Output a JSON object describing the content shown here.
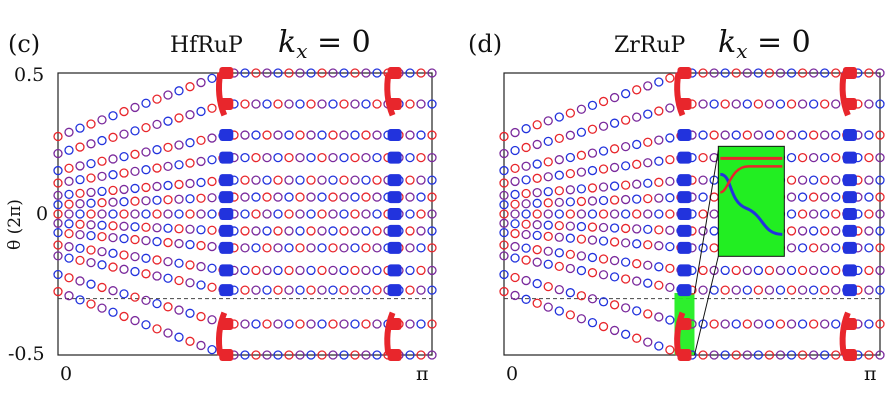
{
  "chart_data": [
    {
      "type": "scatter",
      "panel_label": "(c)",
      "title": "HfRuP",
      "subtitle": "k_x = 0",
      "subtitle_parts": {
        "symbol": "k",
        "subscript": "x",
        "rest": " = 0"
      },
      "ylabel": "θ (2π)",
      "xticks": [
        "0",
        "π"
      ],
      "yticks": [
        "0.5",
        "0",
        "-0.5"
      ],
      "xlim": [
        0,
        1
      ],
      "ylim": [
        -0.5,
        0.5
      ],
      "dashed_line_y": -0.3,
      "series_colors": [
        "#e8262c",
        "#2233dd",
        "#7a2a9c"
      ],
      "bands_y": [
        0.5,
        0.39,
        0.28,
        0.2,
        0.12,
        0.06,
        0.0,
        -0.06,
        -0.12,
        -0.2,
        -0.27,
        -0.39,
        -0.5
      ],
      "band_crossings_x": [
        0.45,
        0.9
      ],
      "inset": false
    },
    {
      "type": "scatter",
      "panel_label": "(d)",
      "title": "ZrRuP",
      "subtitle": "k_x = 0",
      "subtitle_parts": {
        "symbol": "k",
        "subscript": "x",
        "rest": " = 0"
      },
      "ylabel": "",
      "xticks": [
        "0",
        "π"
      ],
      "yticks": [],
      "xlim": [
        0,
        1
      ],
      "ylim": [
        -0.5,
        0.5
      ],
      "dashed_line_y": -0.3,
      "series_colors": [
        "#e8262c",
        "#2233dd",
        "#7a2a9c"
      ],
      "bands_y": [
        0.5,
        0.39,
        0.28,
        0.2,
        0.12,
        0.06,
        0.0,
        -0.06,
        -0.12,
        -0.2,
        -0.27,
        -0.39,
        -0.5
      ],
      "band_crossings_x": [
        0.48,
        0.92
      ],
      "inset": true,
      "highlight_color": "#22ee22"
    }
  ]
}
